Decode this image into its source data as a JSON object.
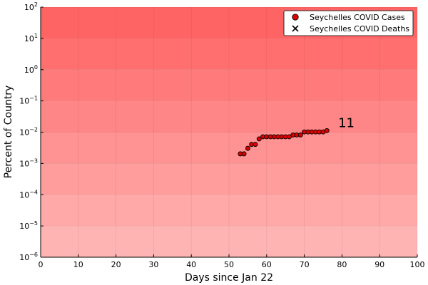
{
  "chart_data": {
    "type": "scatter",
    "title": "",
    "xlabel": "Days since Jan 22",
    "ylabel": "Percent of Country",
    "xlim": [
      0,
      100
    ],
    "ylim": [
      1e-06,
      100
    ],
    "y_scale": "log10",
    "x_ticks": [
      0,
      10,
      20,
      30,
      40,
      50,
      60,
      70,
      80,
      90,
      100
    ],
    "x_tick_labels": [
      "0",
      "10",
      "20",
      "30",
      "40",
      "50",
      "60",
      "70",
      "80",
      "90",
      "100"
    ],
    "y_ticks": [
      -6,
      -5,
      -4,
      -3,
      -2,
      -1,
      0,
      1,
      2
    ],
    "y_tick_labels": [
      {
        "base": "10",
        "exp": "−6"
      },
      {
        "base": "10",
        "exp": "−5"
      },
      {
        "base": "10",
        "exp": "−4"
      },
      {
        "base": "10",
        "exp": "−3"
      },
      {
        "base": "10",
        "exp": "−2"
      },
      {
        "base": "10",
        "exp": "−1"
      },
      {
        "base": "10",
        "exp": "0"
      },
      {
        "base": "10",
        "exp": "1"
      },
      {
        "base": "10",
        "exp": "2"
      }
    ],
    "grid": true,
    "legend_position": "top-right",
    "background_colors": {
      "bottom": "#ffb4b4",
      "top": "#ff6464"
    },
    "series": [
      {
        "name": "Seychelles COVID Cases",
        "marker": "circle",
        "color": "#dd0000",
        "points": [
          {
            "x": 53,
            "y": 0.00203
          },
          {
            "x": 54,
            "y": 0.00203
          },
          {
            "x": 55,
            "y": 0.00305
          },
          {
            "x": 56,
            "y": 0.00407
          },
          {
            "x": 57,
            "y": 0.00407
          },
          {
            "x": 58,
            "y": 0.0061
          },
          {
            "x": 59,
            "y": 0.00712
          },
          {
            "x": 60,
            "y": 0.00712
          },
          {
            "x": 61,
            "y": 0.00712
          },
          {
            "x": 62,
            "y": 0.00712
          },
          {
            "x": 63,
            "y": 0.00712
          },
          {
            "x": 64,
            "y": 0.00712
          },
          {
            "x": 65,
            "y": 0.00712
          },
          {
            "x": 66,
            "y": 0.00712
          },
          {
            "x": 67,
            "y": 0.00814
          },
          {
            "x": 68,
            "y": 0.00814
          },
          {
            "x": 69,
            "y": 0.00814
          },
          {
            "x": 70,
            "y": 0.01017
          },
          {
            "x": 71,
            "y": 0.01017
          },
          {
            "x": 72,
            "y": 0.01017
          },
          {
            "x": 73,
            "y": 0.01017
          },
          {
            "x": 74,
            "y": 0.01017
          },
          {
            "x": 75,
            "y": 0.01017
          },
          {
            "x": 76,
            "y": 0.01119
          }
        ]
      },
      {
        "name": "Seychelles COVID Deaths",
        "marker": "x",
        "color": "#000000",
        "points": []
      }
    ],
    "annotations": [
      {
        "text": "11",
        "x": 79,
        "y": 0.02
      }
    ]
  }
}
